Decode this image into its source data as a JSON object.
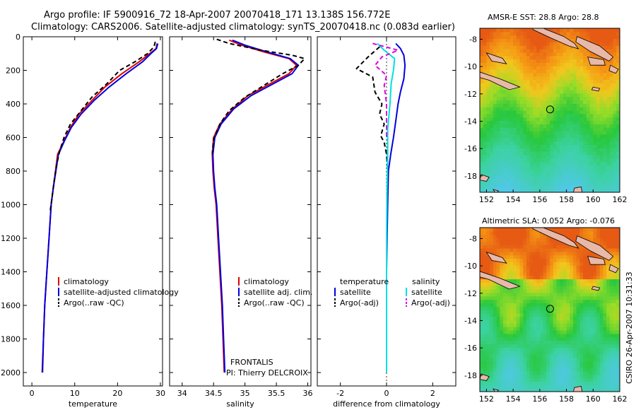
{
  "header": {
    "title_line1": "Argo profile: IF 5900916_72 18-Apr-2007 20070418_171 13.138S 156.772E",
    "title_line2": "Climatology: CARS2006. Satellite-adjusted climatology: synTS_20070418.nc (0.083d earlier)"
  },
  "colors": {
    "climatology": "#e00000",
    "satellite": "#0000e0",
    "argo": "#000000",
    "satellite_diff_salinity": "#00e0e0",
    "argo_diff_salinity": "#e000e0"
  },
  "chart_data": [
    {
      "type": "line",
      "xlabel": "temperature",
      "ylabel": "",
      "xlim": [
        -2,
        30.5
      ],
      "ylim": [
        2080,
        0
      ],
      "xticks": [
        0,
        10,
        20,
        30
      ],
      "yticks": [
        0,
        200,
        400,
        600,
        800,
        1000,
        1200,
        1400,
        1600,
        1800,
        2000
      ],
      "legend_location": "lower-right",
      "series": [
        {
          "name": "climatology",
          "color": "#e00000",
          "dash": "solid",
          "points": [
            [
              29.2,
              40
            ],
            [
              29,
              70
            ],
            [
              27.5,
              100
            ],
            [
              25,
              150
            ],
            [
              21,
              220
            ],
            [
              17,
              300
            ],
            [
              14,
              380
            ],
            [
              11,
              460
            ],
            [
              9,
              540
            ],
            [
              7.5,
              620
            ],
            [
              6,
              700
            ],
            [
              5.5,
              800
            ],
            [
              5,
              900
            ],
            [
              4.5,
              1000
            ],
            [
              4,
              1200
            ],
            [
              3.5,
              1400
            ],
            [
              3.0,
              1600
            ],
            [
              2.7,
              1800
            ],
            [
              2.5,
              2000
            ]
          ]
        },
        {
          "name": "satellite-adjusted climatology",
          "color": "#0000e0",
          "dash": "solid",
          "points": [
            [
              29.4,
              40
            ],
            [
              29.1,
              70
            ],
            [
              27.8,
              100
            ],
            [
              25.8,
              150
            ],
            [
              22,
              220
            ],
            [
              18,
              300
            ],
            [
              14.5,
              380
            ],
            [
              11.5,
              460
            ],
            [
              9.2,
              540
            ],
            [
              7.6,
              620
            ],
            [
              6.2,
              700
            ],
            [
              5.6,
              800
            ],
            [
              5,
              900
            ],
            [
              4.5,
              1000
            ],
            [
              4,
              1200
            ],
            [
              3.5,
              1400
            ],
            [
              3.0,
              1600
            ],
            [
              2.7,
              1800
            ],
            [
              2.4,
              2000
            ]
          ]
        },
        {
          "name": "Argo(..raw -QC)",
          "color": "#000000",
          "dash": "dashed",
          "points": [
            [
              28.8,
              30
            ],
            [
              28.5,
              60
            ],
            [
              27,
              100
            ],
            [
              24,
              150
            ],
            [
              20.5,
              200
            ],
            [
              17.5,
              280
            ],
            [
              14,
              360
            ],
            [
              11.5,
              440
            ],
            [
              9,
              520
            ],
            [
              7.5,
              600
            ],
            [
              6.5,
              680
            ],
            [
              5.8,
              760
            ],
            [
              5.2,
              860
            ],
            [
              4.7,
              960
            ],
            [
              4.2,
              1050
            ]
          ]
        }
      ]
    },
    {
      "type": "line",
      "xlabel": "salinity",
      "ylabel": "",
      "xlim": [
        33.8,
        36.05
      ],
      "ylim": [
        2080,
        0
      ],
      "xticks": [
        34,
        34.5,
        35,
        35.5,
        36
      ],
      "legend_location": "lower-right",
      "annotations": [
        "FRONTALIS",
        "PI: Thierry DELCROIX"
      ],
      "series": [
        {
          "name": "climatology",
          "color": "#e00000",
          "dash": "solid",
          "points": [
            [
              34.75,
              20
            ],
            [
              34.95,
              50
            ],
            [
              35.3,
              90
            ],
            [
              35.7,
              130
            ],
            [
              35.82,
              170
            ],
            [
              35.7,
              220
            ],
            [
              35.4,
              280
            ],
            [
              35.05,
              350
            ],
            [
              34.8,
              430
            ],
            [
              34.6,
              520
            ],
            [
              34.5,
              600
            ],
            [
              34.48,
              700
            ],
            [
              34.49,
              800
            ],
            [
              34.51,
              900
            ],
            [
              34.54,
              1000
            ],
            [
              34.57,
              1200
            ],
            [
              34.6,
              1400
            ],
            [
              34.63,
              1600
            ],
            [
              34.65,
              1800
            ],
            [
              34.67,
              2000
            ]
          ]
        },
        {
          "name": "satellite adj. clim.",
          "color": "#0000e0",
          "dash": "solid",
          "points": [
            [
              34.8,
              20
            ],
            [
              35.0,
              50
            ],
            [
              35.35,
              90
            ],
            [
              35.72,
              130
            ],
            [
              35.85,
              170
            ],
            [
              35.75,
              220
            ],
            [
              35.45,
              280
            ],
            [
              35.1,
              350
            ],
            [
              34.82,
              430
            ],
            [
              34.62,
              520
            ],
            [
              34.52,
              600
            ],
            [
              34.49,
              700
            ],
            [
              34.5,
              800
            ],
            [
              34.52,
              900
            ],
            [
              34.55,
              1000
            ],
            [
              34.58,
              1200
            ],
            [
              34.61,
              1400
            ],
            [
              34.64,
              1600
            ],
            [
              34.66,
              1800
            ],
            [
              34.68,
              2000
            ]
          ]
        },
        {
          "name": "Argo(..raw -QC)",
          "color": "#000000",
          "dash": "dashed",
          "points": [
            [
              34.55,
              15
            ],
            [
              34.75,
              40
            ],
            [
              35.25,
              80
            ],
            [
              35.75,
              110
            ],
            [
              35.95,
              130
            ],
            [
              35.85,
              170
            ],
            [
              35.6,
              220
            ],
            [
              35.3,
              290
            ],
            [
              35.0,
              360
            ],
            [
              34.75,
              440
            ],
            [
              34.6,
              520
            ],
            [
              34.5,
              610
            ],
            [
              34.48,
              700
            ]
          ]
        }
      ]
    },
    {
      "type": "line",
      "xlabel": "difference from climatology",
      "ylabel": "",
      "xlim": [
        -3,
        3
      ],
      "ylim": [
        2080,
        0
      ],
      "xticks": [
        -2,
        0,
        2
      ],
      "legend_location": "lower",
      "legend_groups": [
        "temperature",
        "salinity"
      ],
      "series": [
        {
          "name": "satellite",
          "group": "temperature",
          "color": "#0000e0",
          "dash": "solid",
          "points": [
            [
              0.4,
              40
            ],
            [
              0.6,
              70
            ],
            [
              0.75,
              110
            ],
            [
              0.8,
              170
            ],
            [
              0.75,
              250
            ],
            [
              0.6,
              330
            ],
            [
              0.5,
              400
            ],
            [
              0.4,
              500
            ],
            [
              0.3,
              600
            ],
            [
              0.18,
              700
            ],
            [
              0.08,
              800
            ],
            [
              0.05,
              1000
            ],
            [
              0.02,
              1200
            ],
            [
              0,
              1400
            ],
            [
              0,
              2000
            ]
          ]
        },
        {
          "name": "Argo(-adj)",
          "group": "temperature",
          "color": "#000000",
          "dash": "dashed",
          "points": [
            [
              -0.3,
              60
            ],
            [
              -0.8,
              120
            ],
            [
              -1.3,
              190
            ],
            [
              -0.6,
              240
            ],
            [
              -0.5,
              330
            ],
            [
              -0.2,
              400
            ],
            [
              -0.3,
              460
            ],
            [
              -0.1,
              520
            ],
            [
              -0.25,
              590
            ],
            [
              -0.1,
              630
            ],
            [
              0,
              700
            ],
            [
              0.05,
              800
            ],
            [
              0.02,
              1000
            ]
          ]
        },
        {
          "name": "satellite",
          "group": "salinity",
          "color": "#00e0e0",
          "dash": "solid",
          "points": [
            [
              -0.4,
              40
            ],
            [
              -0.1,
              80
            ],
            [
              0.35,
              130
            ],
            [
              0.3,
              200
            ],
            [
              0.2,
              280
            ],
            [
              0.15,
              400
            ],
            [
              0.05,
              550
            ],
            [
              0.05,
              700
            ],
            [
              0.02,
              900
            ],
            [
              0,
              1200
            ],
            [
              0,
              1600
            ],
            [
              0,
              2000
            ]
          ]
        },
        {
          "name": "Argo(-adj)",
          "group": "salinity",
          "color": "#e000e0",
          "dash": "dashed",
          "points": [
            [
              -0.6,
              40
            ],
            [
              0.5,
              80
            ],
            [
              -0.2,
              120
            ],
            [
              -0.5,
              170
            ],
            [
              0,
              230
            ],
            [
              -0.1,
              290
            ],
            [
              0,
              400
            ],
            [
              0,
              600
            ]
          ]
        }
      ]
    },
    {
      "type": "heatmap",
      "title": "AMSR-E SST: 28.8 Argo: 28.8",
      "xlim": [
        151.5,
        162
      ],
      "ylim": [
        -19.2,
        -7.2
      ],
      "xticks": [
        152,
        154,
        156,
        158,
        160,
        162
      ],
      "yticks": [
        -8,
        -10,
        -12,
        -14,
        -16,
        -18
      ],
      "marker": [
        156.772,
        -13.138
      ]
    },
    {
      "type": "heatmap",
      "title": "Altimetric SLA: 0.052 Argo: -0.076",
      "xlim": [
        151.5,
        162
      ],
      "ylim": [
        -19.2,
        -7.2
      ],
      "xticks": [
        152,
        154,
        156,
        158,
        160,
        162
      ],
      "yticks": [
        -8,
        -10,
        -12,
        -14,
        -16,
        -18
      ],
      "marker": [
        156.772,
        -13.138
      ]
    }
  ],
  "side_label": "CSIRO 26-Apr-2007 10:31:33"
}
